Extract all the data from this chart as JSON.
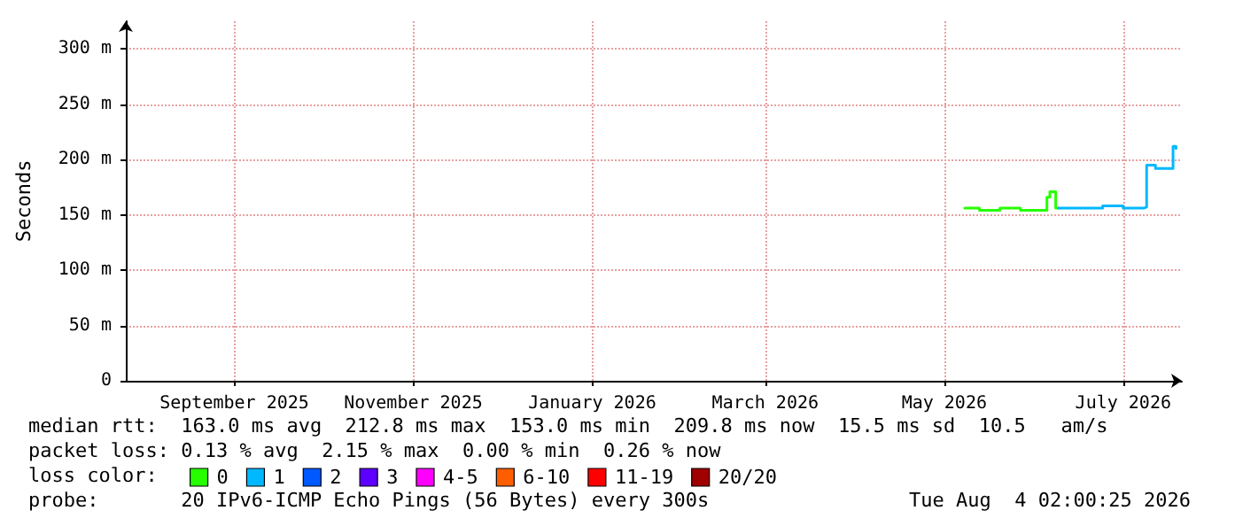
{
  "chart_data": {
    "type": "step",
    "ylabel": "Seconds",
    "legend_title": "loss color:",
    "legend": "bottom",
    "grid": true,
    "marker": "none",
    "line_style": "solid",
    "xlim": [
      "2025-08-09",
      "2026-08-04"
    ],
    "xticks": [
      {
        "value": "2025-09-15",
        "label": "September 2025"
      },
      {
        "value": "2025-11-15",
        "label": "November 2025"
      },
      {
        "value": "2026-01-15",
        "label": "January 2026"
      },
      {
        "value": "2026-03-15",
        "label": "March 2026"
      },
      {
        "value": "2026-05-15",
        "label": "May 2026"
      },
      {
        "value": "2026-07-15",
        "label": "July 2026"
      }
    ],
    "ylim": [
      0,
      325
    ],
    "yticks": [
      0,
      {
        "value": 50,
        "label": "50 m"
      },
      {
        "value": 100,
        "label": "100 m"
      },
      {
        "value": 150,
        "label": "150 m"
      },
      {
        "value": 200,
        "label": "200 m"
      },
      {
        "value": 250,
        "label": "250 m"
      },
      {
        "value": 300,
        "label": "300 m"
      }
    ],
    "series": [
      {
        "name": "0",
        "color": "#26ff00",
        "x": [
          "2026-05-22",
          "2026-05-27",
          "2026-06-03",
          "2026-06-10",
          "2026-06-16",
          "2026-06-19",
          "2026-06-20",
          "2026-06-22",
          "2026-06-23"
        ],
        "values": [
          156,
          154,
          156,
          154,
          154,
          166,
          171,
          156,
          156
        ]
      },
      {
        "name": "1",
        "color": "#00b8ff",
        "x": [
          "2026-06-23",
          "2026-06-30",
          "2026-07-08",
          "2026-07-15",
          "2026-07-22",
          "2026-07-23",
          "2026-07-26",
          "2026-07-31",
          "2026-08-01",
          "2026-08-02"
        ],
        "values": [
          156,
          156,
          158,
          156,
          157,
          195,
          192,
          192,
          212,
          210
        ]
      },
      {
        "name": "2",
        "color": "#0059ff"
      },
      {
        "name": "3",
        "color": "#5e00ff"
      },
      {
        "name": "4-5",
        "color": "#ff00ff"
      },
      {
        "name": "6-10",
        "color": "#ff5e00"
      },
      {
        "name": "11-19",
        "color": "#ff0000"
      },
      {
        "name": "20/20",
        "color": "#a10000"
      }
    ],
    "annotations": [
      "median rtt:  163.0 ms avg  212.8 ms max  153.0 ms min  209.8 ms now  15.5 ms sd  10.5   am/s",
      "packet loss: 0.13 % avg  2.15 % max  0.00 % min  0.26 % now",
      "probe:       20 IPv6-ICMP Echo Pings (56 Bytes) every 300s",
      "Tue Aug  4 02:00:25 2026"
    ]
  }
}
